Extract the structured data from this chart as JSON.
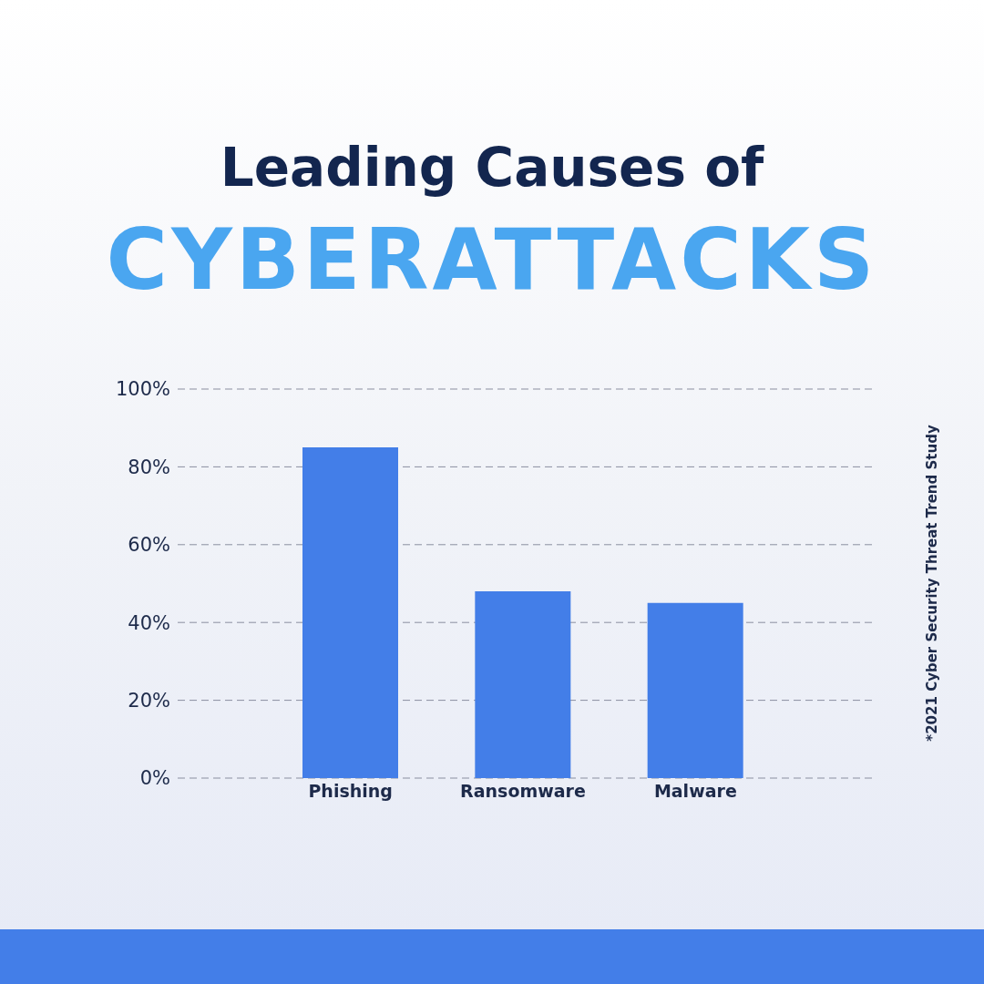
{
  "chart_data": {
    "type": "bar",
    "title": "Leading Causes of",
    "subtitle": "CYBERATTACKS",
    "categories": [
      "Phishing",
      "Ransomware",
      "Malware"
    ],
    "values": [
      85,
      48,
      45
    ],
    "color": "#437ee8",
    "ylim": [
      0,
      100
    ],
    "yticks": [
      {
        "value": 0,
        "label": "0%"
      },
      {
        "value": 20,
        "label": "20%"
      },
      {
        "value": 40,
        "label": "40%"
      },
      {
        "value": 60,
        "label": "60%"
      },
      {
        "value": 80,
        "label": "80%"
      },
      {
        "value": 100,
        "label": "100%"
      }
    ],
    "grid": "y",
    "legend": false,
    "annotations": [
      "*2021 Cyber Security Threat Trend Study"
    ]
  }
}
